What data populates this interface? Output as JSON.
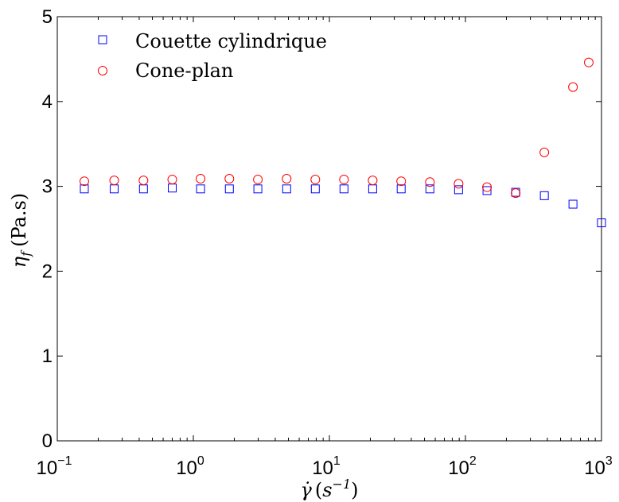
{
  "chart_data": {
    "type": "scatter",
    "title": "",
    "x_scale": "log",
    "xlim": [
      0.1,
      1000
    ],
    "ylim": [
      0,
      5
    ],
    "x_ticks": [
      {
        "base": "10",
        "exp": "−1"
      },
      {
        "base": "10",
        "exp": "0"
      },
      {
        "base": "10",
        "exp": "1"
      },
      {
        "base": "10",
        "exp": "2"
      },
      {
        "base": "10",
        "exp": "3"
      }
    ],
    "y_ticks": [
      "0",
      "1",
      "2",
      "3",
      "4",
      "5"
    ],
    "xlabel": {
      "symbol": "γ̇",
      "unit_open": "(",
      "unit_var": "s",
      "unit_exp": "−1",
      "unit_close": ")"
    },
    "ylabel": {
      "symbol": "η",
      "sub": "f",
      "unit": "(Pa.s)"
    },
    "grid": false,
    "legend_position": "top-left",
    "series": [
      {
        "name": "Couette cylindrique",
        "marker": "square",
        "color": "#0000ff",
        "x": [
          0.158,
          0.262,
          0.43,
          0.7,
          1.13,
          1.84,
          2.98,
          4.85,
          7.88,
          12.8,
          20.8,
          33.7,
          54.8,
          89,
          144,
          234,
          380,
          617,
          1000
        ],
        "y": [
          2.97,
          2.97,
          2.97,
          2.98,
          2.97,
          2.97,
          2.97,
          2.97,
          2.97,
          2.97,
          2.97,
          2.97,
          2.97,
          2.96,
          2.95,
          2.93,
          2.89,
          2.79,
          2.57
        ]
      },
      {
        "name": "Cone-plan",
        "marker": "circle",
        "color": "#ff0000",
        "x": [
          0.158,
          0.262,
          0.43,
          0.7,
          1.13,
          1.84,
          2.98,
          4.85,
          7.88,
          12.8,
          20.8,
          33.7,
          54.8,
          89,
          144,
          234,
          380,
          617,
          806
        ],
        "y": [
          3.06,
          3.07,
          3.07,
          3.08,
          3.09,
          3.09,
          3.08,
          3.09,
          3.08,
          3.08,
          3.07,
          3.06,
          3.05,
          3.03,
          2.99,
          2.92,
          3.4,
          4.17,
          4.46
        ]
      }
    ]
  }
}
